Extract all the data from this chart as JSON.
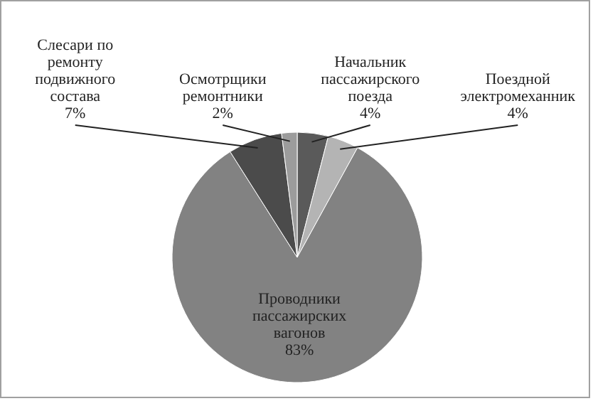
{
  "chart_data": {
    "type": "pie",
    "categories": [
      "Начальник пассажирского поезда",
      "Поездной электромеханник",
      "Проводники пассажирских вагонов",
      "Слесари по ремонту подвижного состава",
      "Осмотрщики ремонтники"
    ],
    "values": [
      4,
      4,
      83,
      7,
      2
    ],
    "colors": [
      "#5a5a5a",
      "#b4b4b4",
      "#828282",
      "#4b4b4b",
      "#9c9c9c"
    ],
    "value_labels": [
      "4%",
      "4%",
      "83%",
      "7%",
      "2%"
    ]
  }
}
